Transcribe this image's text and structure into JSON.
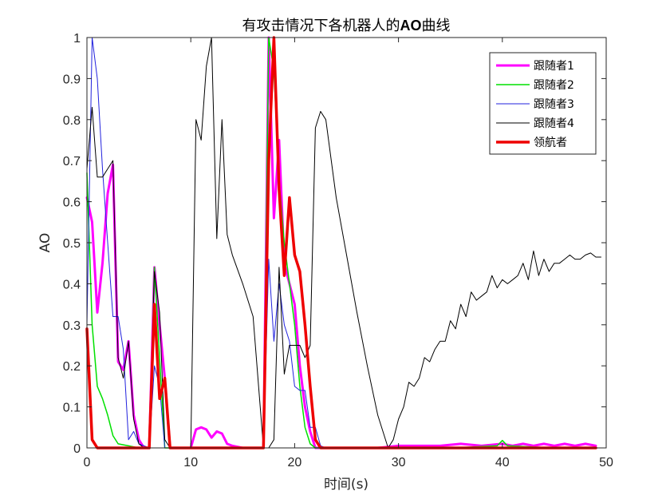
{
  "chart_data": {
    "type": "line",
    "title_prefix": "有攻击情况下各机器人的",
    "title_bold": "AO",
    "title_suffix": "曲线",
    "xlabel": "时间(s)",
    "ylabel": "AO",
    "xlim": [
      0,
      50
    ],
    "ylim": [
      0,
      1
    ],
    "xticks": [
      0,
      10,
      20,
      30,
      40,
      50
    ],
    "yticks": [
      0,
      0.1,
      0.2,
      0.3,
      0.4,
      0.5,
      0.6,
      0.7,
      0.8,
      0.9,
      1
    ],
    "xtick_labels": [
      "0",
      "10",
      "20",
      "30",
      "40",
      "50"
    ],
    "ytick_labels": [
      "0",
      "0.1",
      "0.2",
      "0.3",
      "0.4",
      "0.5",
      "0.6",
      "0.7",
      "0.8",
      "0.9",
      "1"
    ],
    "grid": false,
    "legend_position": "top-right",
    "series": [
      {
        "name": "跟随者1",
        "color": "#ff00ff",
        "width": 3,
        "points": [
          [
            0,
            0.61
          ],
          [
            0.5,
            0.55
          ],
          [
            1,
            0.33
          ],
          [
            1.5,
            0.45
          ],
          [
            2,
            0.62
          ],
          [
            2.5,
            0.69
          ],
          [
            3,
            0.21
          ],
          [
            3.5,
            0.19
          ],
          [
            4,
            0.26
          ],
          [
            4.5,
            0.08
          ],
          [
            5,
            0.02
          ],
          [
            5.5,
            0.0
          ],
          [
            6,
            0.0
          ],
          [
            6.5,
            0.44
          ],
          [
            7,
            0.3
          ],
          [
            7.5,
            0.17
          ],
          [
            8,
            0.0
          ],
          [
            9,
            0.0
          ],
          [
            10,
            0.0
          ],
          [
            10.5,
            0.045
          ],
          [
            11,
            0.05
          ],
          [
            11.5,
            0.045
          ],
          [
            12,
            0.025
          ],
          [
            12.5,
            0.04
          ],
          [
            13,
            0.035
          ],
          [
            13.5,
            0.01
          ],
          [
            14,
            0.005
          ],
          [
            15,
            0.0
          ],
          [
            16,
            0.0
          ],
          [
            17,
            0.0
          ],
          [
            17.5,
            1.0
          ],
          [
            18,
            0.56
          ],
          [
            18.5,
            0.75
          ],
          [
            19,
            0.45
          ],
          [
            19.5,
            0.4
          ],
          [
            20,
            0.35
          ],
          [
            20.5,
            0.2
          ],
          [
            21,
            0.1
          ],
          [
            21.5,
            0.04
          ],
          [
            22,
            0.0
          ],
          [
            23,
            0.0
          ],
          [
            25,
            0.0
          ],
          [
            28,
            0.0
          ],
          [
            30,
            0.005
          ],
          [
            32,
            0.005
          ],
          [
            34,
            0.005
          ],
          [
            36,
            0.01
          ],
          [
            38,
            0.005
          ],
          [
            40,
            0.01
          ],
          [
            41,
            0.005
          ],
          [
            42,
            0.01
          ],
          [
            43,
            0.005
          ],
          [
            44,
            0.01
          ],
          [
            45,
            0.005
          ],
          [
            46,
            0.01
          ],
          [
            47,
            0.005
          ],
          [
            48,
            0.01
          ],
          [
            49,
            0.005
          ]
        ]
      },
      {
        "name": "跟随者2",
        "color": "#00e000",
        "width": 1.5,
        "points": [
          [
            0,
            0.67
          ],
          [
            0.5,
            0.3
          ],
          [
            1,
            0.15
          ],
          [
            1.5,
            0.12
          ],
          [
            2,
            0.08
          ],
          [
            2.5,
            0.03
          ],
          [
            3,
            0.01
          ],
          [
            4,
            0.005
          ],
          [
            5,
            0.0
          ],
          [
            6,
            0.0
          ],
          [
            6.5,
            0.44
          ],
          [
            7,
            0.22
          ],
          [
            7.5,
            0.0
          ],
          [
            8,
            0.0
          ],
          [
            10,
            0.0
          ],
          [
            12,
            0.0
          ],
          [
            14,
            0.0
          ],
          [
            16,
            0.0
          ],
          [
            17,
            0.0
          ],
          [
            17.5,
            1.0
          ],
          [
            18,
            0.92
          ],
          [
            18.5,
            0.65
          ],
          [
            19,
            0.5
          ],
          [
            19.5,
            0.4
          ],
          [
            20,
            0.3
          ],
          [
            20.5,
            0.15
          ],
          [
            21,
            0.05
          ],
          [
            21.5,
            0.01
          ],
          [
            22,
            0.0
          ],
          [
            25,
            0.0
          ],
          [
            30,
            0.0
          ],
          [
            35,
            0.0
          ],
          [
            39.5,
            0.005
          ],
          [
            40,
            0.018
          ],
          [
            40.5,
            0.005
          ],
          [
            45,
            0.0
          ],
          [
            49,
            0.0
          ]
        ]
      },
      {
        "name": "跟随者3",
        "color": "#2222dd",
        "width": 1,
        "points": [
          [
            0,
            0.3
          ],
          [
            0.5,
            1.0
          ],
          [
            1,
            0.9
          ],
          [
            1.5,
            0.68
          ],
          [
            2,
            0.5
          ],
          [
            2.5,
            0.32
          ],
          [
            3,
            0.32
          ],
          [
            3.5,
            0.24
          ],
          [
            4,
            0.02
          ],
          [
            4.5,
            0.04
          ],
          [
            5,
            0.01
          ],
          [
            6,
            0.0
          ],
          [
            6.5,
            0.2
          ],
          [
            7,
            0.15
          ],
          [
            7.5,
            0.0
          ],
          [
            8,
            0.0
          ],
          [
            10,
            0.0
          ],
          [
            12,
            0.0
          ],
          [
            14,
            0.0
          ],
          [
            16,
            0.0
          ],
          [
            17,
            0.0
          ],
          [
            17.5,
            0.46
          ],
          [
            18,
            0.26
          ],
          [
            18.5,
            0.4
          ],
          [
            19,
            0.3
          ],
          [
            19.5,
            0.26
          ],
          [
            20,
            0.15
          ],
          [
            20.5,
            0.14
          ],
          [
            21,
            0.14
          ],
          [
            21.5,
            0.05
          ],
          [
            22,
            0.05
          ],
          [
            22.5,
            0.005
          ],
          [
            23,
            0.0
          ],
          [
            25,
            0.0
          ],
          [
            30,
            0.0
          ],
          [
            40,
            0.0
          ],
          [
            49,
            0.0
          ]
        ]
      },
      {
        "name": "跟随者4",
        "color": "#000000",
        "width": 1,
        "points": [
          [
            0,
            0.68
          ],
          [
            0.5,
            0.83
          ],
          [
            1,
            0.66
          ],
          [
            1.5,
            0.66
          ],
          [
            2,
            0.68
          ],
          [
            2.5,
            0.7
          ],
          [
            3,
            0.22
          ],
          [
            3.5,
            0.17
          ],
          [
            4,
            0.26
          ],
          [
            4.5,
            0.07
          ],
          [
            5,
            0.01
          ],
          [
            5.5,
            0.0
          ],
          [
            6,
            0.0
          ],
          [
            6.5,
            0.43
          ],
          [
            7,
            0.33
          ],
          [
            7.5,
            0.02
          ],
          [
            8,
            0.0
          ],
          [
            9,
            0.0
          ],
          [
            10,
            0.0
          ],
          [
            10.5,
            0.8
          ],
          [
            11,
            0.75
          ],
          [
            11.5,
            0.93
          ],
          [
            12,
            1.0
          ],
          [
            12.5,
            0.51
          ],
          [
            13,
            0.8
          ],
          [
            13.5,
            0.52
          ],
          [
            14,
            0.47
          ],
          [
            15,
            0.4
          ],
          [
            16,
            0.32
          ],
          [
            17,
            0.0
          ],
          [
            17.5,
            0.0
          ],
          [
            18,
            0.02
          ],
          [
            18.5,
            0.44
          ],
          [
            19,
            0.18
          ],
          [
            19.5,
            0.25
          ],
          [
            20,
            0.25
          ],
          [
            20.5,
            0.25
          ],
          [
            21,
            0.22
          ],
          [
            21.5,
            0.25
          ],
          [
            22,
            0.78
          ],
          [
            22.5,
            0.82
          ],
          [
            23,
            0.8
          ],
          [
            24,
            0.61
          ],
          [
            25,
            0.47
          ],
          [
            26,
            0.33
          ],
          [
            27,
            0.2
          ],
          [
            28,
            0.08
          ],
          [
            29,
            0.0
          ],
          [
            29.5,
            0.02
          ],
          [
            30,
            0.07
          ],
          [
            30.5,
            0.1
          ],
          [
            31,
            0.16
          ],
          [
            31.5,
            0.15
          ],
          [
            32,
            0.17
          ],
          [
            32.5,
            0.22
          ],
          [
            33,
            0.21
          ],
          [
            33.5,
            0.24
          ],
          [
            34,
            0.26
          ],
          [
            34.5,
            0.26
          ],
          [
            35,
            0.31
          ],
          [
            35.5,
            0.29
          ],
          [
            36,
            0.35
          ],
          [
            36.5,
            0.32
          ],
          [
            37,
            0.38
          ],
          [
            37.5,
            0.36
          ],
          [
            38,
            0.37
          ],
          [
            38.5,
            0.38
          ],
          [
            39,
            0.42
          ],
          [
            39.5,
            0.39
          ],
          [
            40,
            0.41
          ],
          [
            40.5,
            0.4
          ],
          [
            41,
            0.41
          ],
          [
            41.5,
            0.42
          ],
          [
            42,
            0.45
          ],
          [
            42.5,
            0.41
          ],
          [
            43,
            0.48
          ],
          [
            43.5,
            0.42
          ],
          [
            44,
            0.46
          ],
          [
            44.5,
            0.43
          ],
          [
            45,
            0.45
          ],
          [
            45.5,
            0.45
          ],
          [
            46,
            0.46
          ],
          [
            46.5,
            0.47
          ],
          [
            47,
            0.46
          ],
          [
            47.5,
            0.46
          ],
          [
            48,
            0.47
          ],
          [
            48.5,
            0.475
          ],
          [
            49,
            0.465
          ],
          [
            49.5,
            0.465
          ]
        ]
      },
      {
        "name": "领航者",
        "color": "#ee0000",
        "width": 3.5,
        "points": [
          [
            0,
            0.29
          ],
          [
            0.5,
            0.02
          ],
          [
            1,
            0.0
          ],
          [
            2,
            0.0
          ],
          [
            3,
            0.0
          ],
          [
            4,
            0.0
          ],
          [
            5,
            0.0
          ],
          [
            6,
            0.0
          ],
          [
            6.5,
            0.35
          ],
          [
            7,
            0.12
          ],
          [
            7.5,
            0.17
          ],
          [
            8,
            0.0
          ],
          [
            10,
            0.0
          ],
          [
            12,
            0.0
          ],
          [
            14,
            0.0
          ],
          [
            16,
            0.0
          ],
          [
            17,
            0.0
          ],
          [
            17.5,
            0.7
          ],
          [
            18,
            1.0
          ],
          [
            18.5,
            0.63
          ],
          [
            19,
            0.42
          ],
          [
            19.5,
            0.61
          ],
          [
            20,
            0.47
          ],
          [
            20.5,
            0.43
          ],
          [
            21,
            0.3
          ],
          [
            21.5,
            0.15
          ],
          [
            22,
            0.02
          ],
          [
            22.5,
            0.0
          ],
          [
            25,
            0.0
          ],
          [
            30,
            0.0
          ],
          [
            35,
            0.0
          ],
          [
            40,
            0.0
          ],
          [
            45,
            0.0
          ],
          [
            49,
            0.0
          ]
        ]
      }
    ]
  }
}
